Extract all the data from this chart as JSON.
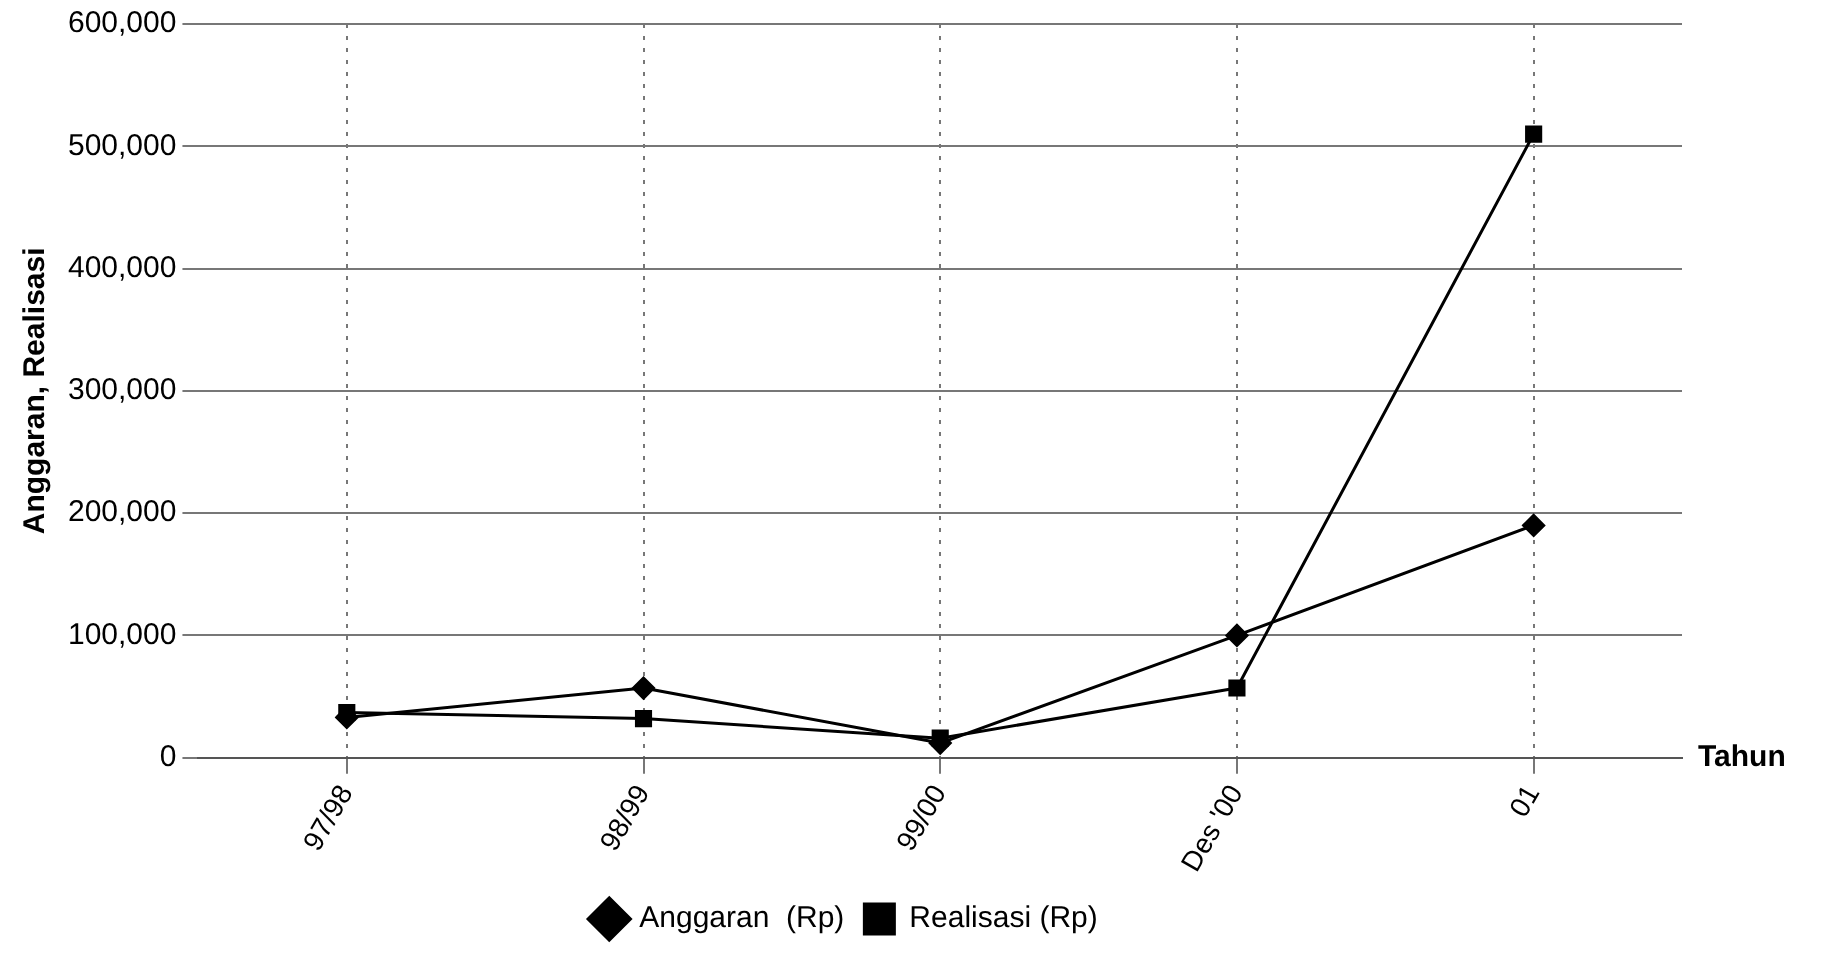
{
  "chart_data": {
    "type": "line",
    "xlabel": "Tahun",
    "ylabel": "Anggaran, Realisasi",
    "categories": [
      "97/98",
      "98/99",
      "99/00",
      "Des '00",
      "01"
    ],
    "series": [
      {
        "name": "Anggaran  (Rp)",
        "color": "#000000",
        "marker": "diamond",
        "values": [
          33000,
          57000,
          12000,
          100000,
          190000
        ]
      },
      {
        "name": "Realisasi (Rp)",
        "color": "#000000",
        "marker": "square",
        "values": [
          37000,
          32000,
          16000,
          57000,
          510000
        ]
      }
    ],
    "ylim": [
      0,
      600000
    ],
    "yticks": [
      0,
      {
        "value": 100000,
        "label": "100,000"
      },
      {
        "value": 200000,
        "label": "200,000"
      },
      {
        "value": 300000,
        "label": "300,000"
      },
      {
        "value": 400000,
        "label": "400,000"
      },
      {
        "value": 500000,
        "label": "500,000"
      },
      {
        "value": 600000,
        "label": "600,000"
      }
    ],
    "grid": true,
    "legend": "bottom",
    "line_style": "solid"
  }
}
